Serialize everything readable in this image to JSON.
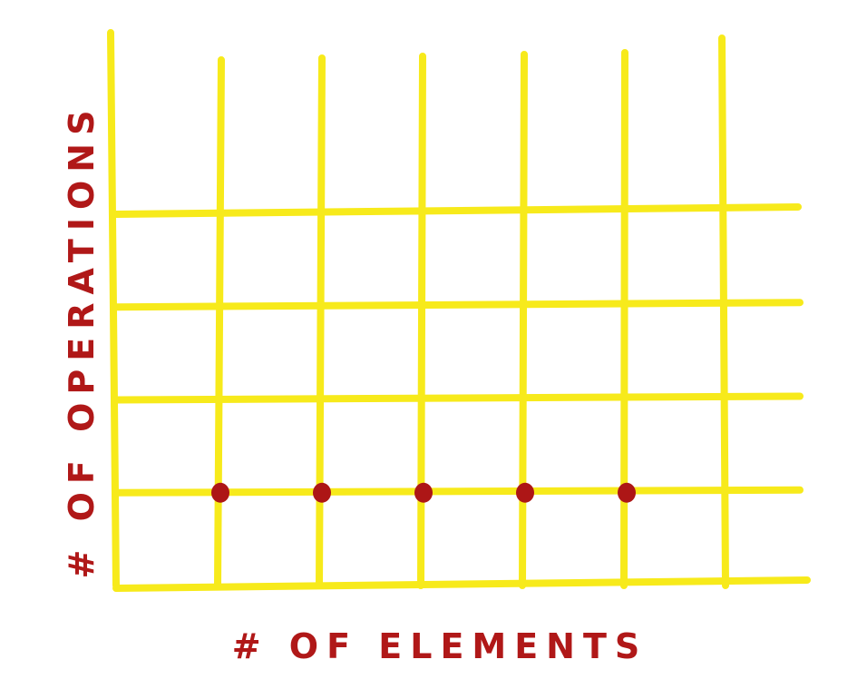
{
  "chart_data": {
    "type": "scatter",
    "title": "",
    "xlabel": "# OF ELEMENTS",
    "ylabel": "# OF OPERATIONS",
    "xlim": [
      0,
      6
    ],
    "ylim": [
      0,
      4
    ],
    "grid": true,
    "x_ticks": [],
    "y_ticks": [],
    "series": [
      {
        "x": [
          1,
          2,
          3,
          4,
          5
        ],
        "y": [
          1,
          1,
          1,
          1,
          1
        ]
      }
    ]
  },
  "colors": {
    "grid": "#f7ea1b",
    "points": "#ad1616",
    "labels": "#b01818"
  }
}
